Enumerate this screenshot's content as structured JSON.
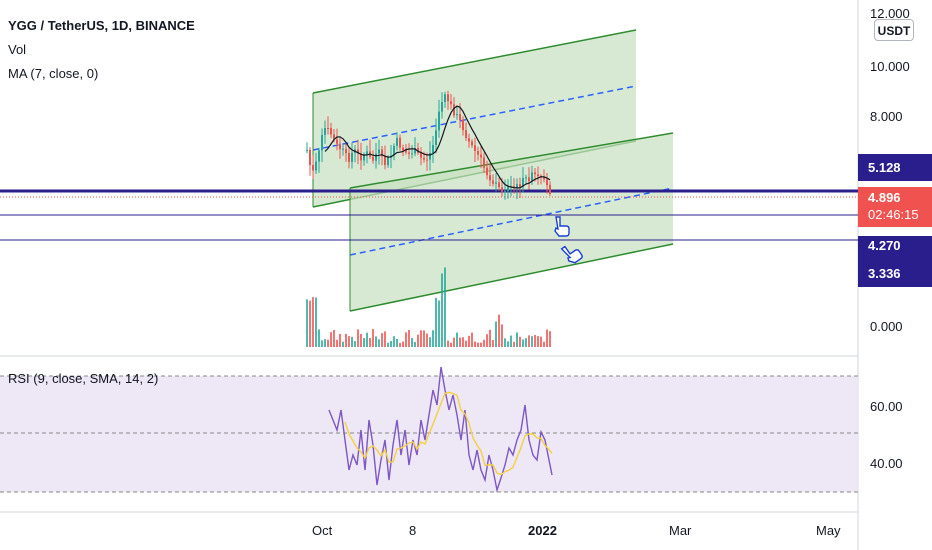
{
  "header": {
    "symbol_title": "YGG / TetherUS, 1D, BINANCE",
    "vol_label": "Vol",
    "ma_label": "MA (7, close, 0)",
    "rsi_label": "RSI (9, close, SMA, 14, 2)",
    "currency": "USDT"
  },
  "price_axis": {
    "labels": [
      "12.000",
      "10.000",
      "8.000",
      "0.000"
    ],
    "tags": {
      "resistance": "5.128",
      "last_price": "4.896",
      "countdown": "02:46:15",
      "support": "4.270",
      "lower": "3.336"
    }
  },
  "rsi_axis": {
    "labels": [
      "60.00",
      "40.00"
    ],
    "levels": [
      70,
      50,
      30
    ]
  },
  "time_axis": {
    "labels": [
      "Oct",
      "8",
      "2022",
      "Mar",
      "May"
    ]
  },
  "colors": {
    "channel_green": "#2e8b2e",
    "channel_fill": "#c8e0c0",
    "midline_blue": "#2962ff",
    "level_line": "#2a1e8c",
    "candle_up": "#26a69a",
    "candle_down": "#ef5350",
    "ma_line": "#131722",
    "rsi_line": "#7e57c2",
    "rsi_sma": "#f4d03f",
    "rsi_band": "#ede7f6",
    "last_price_tag": "#f0524f",
    "level_tag": "#2a1e8c"
  },
  "icons": [
    "pointing-hand-icon",
    "pointing-hand-icon"
  ]
}
